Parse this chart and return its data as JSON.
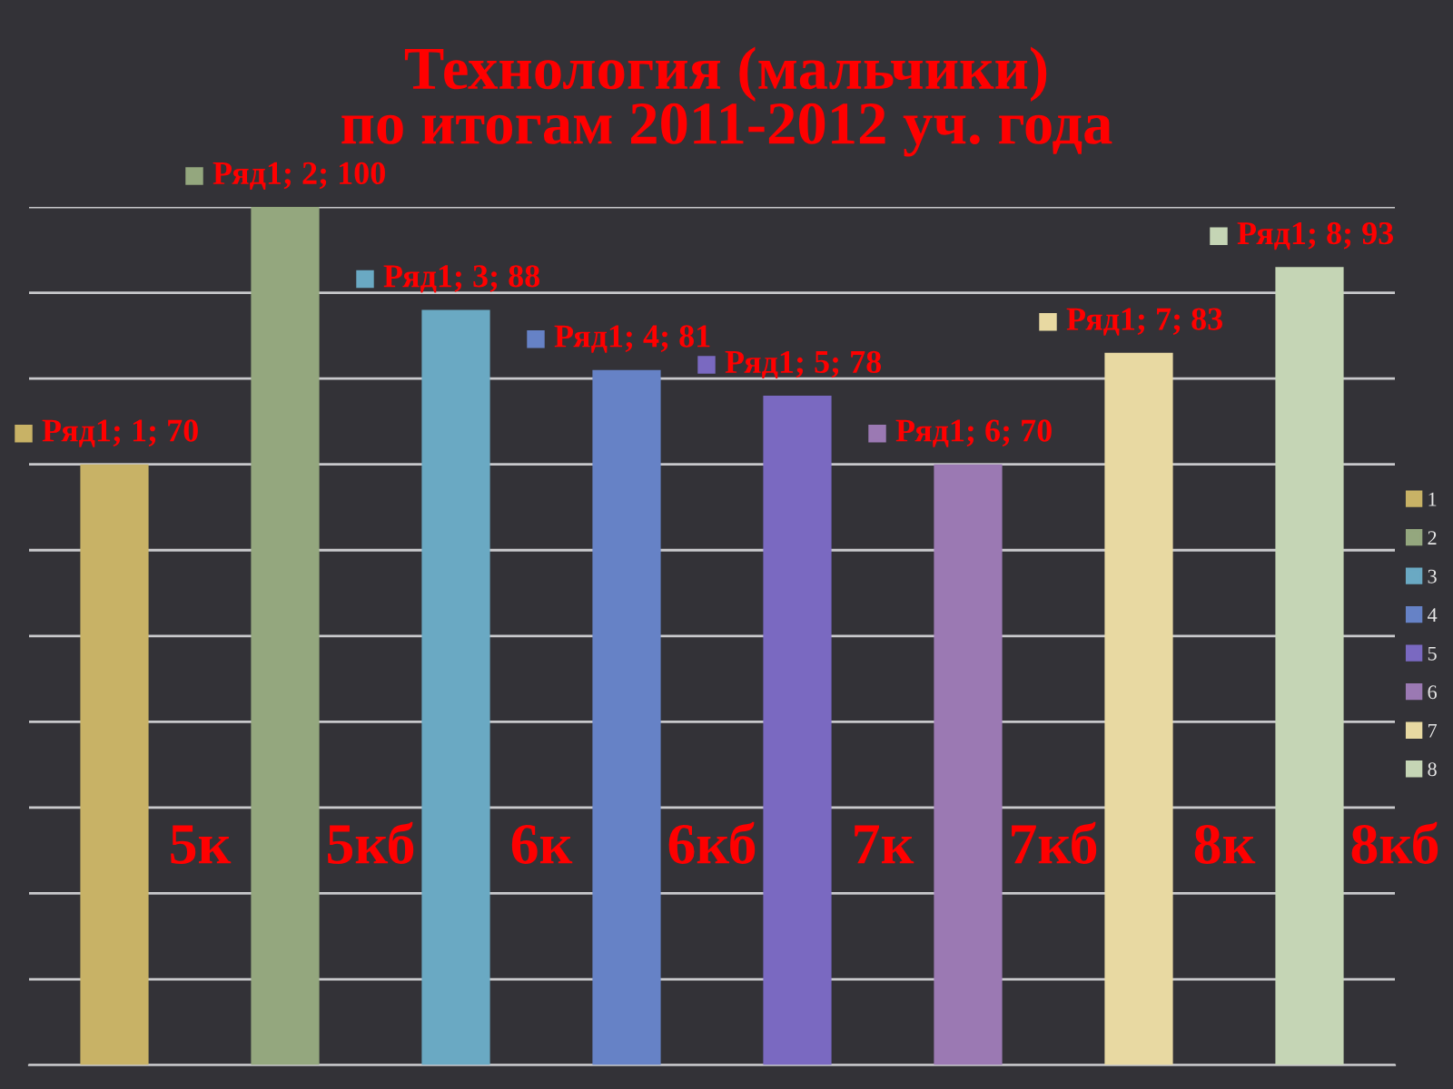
{
  "chart_data": {
    "type": "bar",
    "title": "Технология (мальчики)\nпо итогам 2011-2012 уч. года",
    "stacked": true,
    "categories": [
      null,
      null,
      null,
      null,
      null,
      null,
      null,
      null
    ],
    "series": [
      {
        "name": "1",
        "color": "#c8b266",
        "values": [
          70,
          null,
          null,
          null,
          null,
          null,
          null,
          null
        ],
        "value_labels": [
          "Ряд1; 1; 70",
          null,
          null,
          null,
          null,
          null,
          null,
          null
        ]
      },
      {
        "name": "2",
        "color": "#94a77e",
        "values": [
          null,
          100,
          null,
          null,
          null,
          null,
          null,
          null
        ],
        "value_labels": [
          null,
          "Ряд1; 2; 100",
          null,
          null,
          null,
          null,
          null,
          null
        ]
      },
      {
        "name": "3",
        "color": "#6aa9c3",
        "values": [
          null,
          null,
          88,
          null,
          null,
          null,
          null,
          null
        ],
        "value_labels": [
          null,
          null,
          "Ряд1; 3; 88",
          null,
          null,
          null,
          null,
          null
        ]
      },
      {
        "name": "4",
        "color": "#6682c6",
        "values": [
          null,
          null,
          null,
          81,
          null,
          null,
          null,
          null
        ],
        "value_labels": [
          null,
          null,
          null,
          "Ряд1; 4; 81",
          null,
          null,
          null,
          null
        ]
      },
      {
        "name": "5",
        "color": "#7a69c1",
        "values": [
          null,
          null,
          null,
          null,
          78,
          null,
          null,
          null
        ],
        "value_labels": [
          null,
          null,
          null,
          null,
          "Ряд1; 5; 78",
          null,
          null,
          null
        ]
      },
      {
        "name": "6",
        "color": "#9b79b3",
        "values": [
          null,
          null,
          null,
          null,
          null,
          70,
          null,
          null
        ],
        "value_labels": [
          null,
          null,
          null,
          null,
          null,
          "Ряд1; 6; 70",
          null,
          null
        ]
      },
      {
        "name": "7",
        "color": "#e8d9a2",
        "values": [
          null,
          null,
          null,
          null,
          null,
          null,
          83,
          null
        ],
        "value_labels": [
          null,
          null,
          null,
          null,
          null,
          null,
          "Ряд1; 7; 83",
          null
        ]
      },
      {
        "name": "8",
        "color": "#c5d5b5",
        "values": [
          null,
          null,
          null,
          null,
          null,
          null,
          null,
          93
        ],
        "value_labels": [
          null,
          null,
          null,
          null,
          null,
          null,
          null,
          "Ряд1; 8; 93"
        ]
      }
    ],
    "ylim": [
      0,
      100
    ],
    "yticks": [
      {
        "value": 0,
        "label": null
      },
      {
        "value": 10,
        "label": null
      },
      {
        "value": 20,
        "label": null
      },
      {
        "value": 30,
        "label": null
      },
      {
        "value": 40,
        "label": null
      },
      {
        "value": 50,
        "label": null
      },
      {
        "value": 60,
        "label": null
      },
      {
        "value": 70,
        "label": null
      },
      {
        "value": 80,
        "label": null
      },
      {
        "value": 90,
        "label": null
      },
      {
        "value": 100,
        "label": null
      }
    ],
    "grid": "y",
    "legend": "right",
    "annotations": [
      "5к",
      "5кб",
      "6к",
      "6кб",
      "7к",
      "7кб",
      "8к",
      "8кб"
    ]
  }
}
